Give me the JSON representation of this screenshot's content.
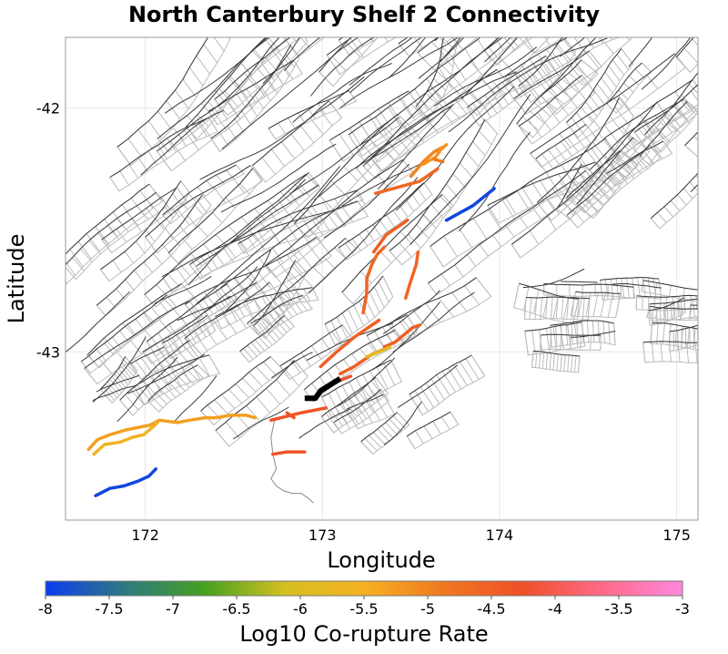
{
  "title": "North Canterbury Shelf 2 Connectivity",
  "map": {
    "xlabel": "Longitude",
    "ylabel": "Latitude",
    "xlim": [
      171.55,
      175.12
    ],
    "ylim": [
      -43.69,
      -41.71
    ],
    "x_ticks": [
      172,
      173,
      174,
      175
    ],
    "x_tick_labels": [
      "172",
      "173",
      "174",
      "175"
    ],
    "y_ticks": [
      -42,
      -43
    ],
    "y_tick_labels": [
      "-42",
      "-43"
    ],
    "grid": true
  },
  "colorbar": {
    "label": "Log10 Co-rupture Rate",
    "min": -8,
    "max": -3,
    "ticks": [
      -8,
      -7.5,
      -7,
      -6.5,
      -6,
      -5.5,
      -5,
      -4.5,
      -4,
      -3.5,
      -3
    ],
    "tick_labels": [
      "-8",
      "-7.5",
      "-7",
      "-6.5",
      "-6",
      "-5.5",
      "-5",
      "-4.5",
      "-4",
      "-3.5",
      "-3"
    ],
    "stops": [
      "#0a3cf0",
      "#2e7a80",
      "#46a020",
      "#d4c020",
      "#f5b222",
      "#f07820",
      "#ee5028",
      "#ff6a8a",
      "#ff88dd"
    ]
  },
  "colors": {
    "fault_trace": "#3a3a3a",
    "fault_patch": "#bcbcbc",
    "target_fault": "#000000",
    "frame": "#999999",
    "gridline": "#e8e8e8"
  },
  "chart_data": {
    "type": "map",
    "title": "North Canterbury Shelf 2 Connectivity",
    "xlabel": "Longitude",
    "ylabel": "Latitude",
    "target_fault": {
      "name": "North Canterbury Shelf 2",
      "trace": [
        [
          172.9,
          -43.19
        ],
        [
          172.96,
          -43.19
        ],
        [
          172.99,
          -43.16
        ],
        [
          173.1,
          -43.11
        ]
      ]
    },
    "connected_faults": [
      {
        "trace": [
          [
            173.3,
            -42.35
          ],
          [
            173.45,
            -42.32
          ],
          [
            173.55,
            -42.3
          ],
          [
            173.65,
            -42.25
          ]
        ],
        "log10_rate": -4.6
      },
      {
        "trace": [
          [
            173.5,
            -42.28
          ],
          [
            173.57,
            -42.22
          ],
          [
            173.63,
            -42.18
          ],
          [
            173.68,
            -42.16
          ]
        ],
        "log10_rate": -5.0
      },
      {
        "trace": [
          [
            173.57,
            -42.23
          ],
          [
            173.64,
            -42.2
          ],
          [
            173.67,
            -42.17
          ],
          [
            173.7,
            -42.15
          ]
        ],
        "log10_rate": -5.2
      },
      {
        "trace": [
          [
            173.68,
            -42.22
          ],
          [
            173.63,
            -42.21
          ]
        ],
        "log10_rate": -4.9
      },
      {
        "trace": [
          [
            173.7,
            -42.46
          ],
          [
            173.85,
            -42.4
          ],
          [
            173.97,
            -42.33
          ]
        ],
        "log10_rate": -7.9
      },
      {
        "trace": [
          [
            173.29,
            -42.59
          ],
          [
            173.36,
            -42.52
          ],
          [
            173.48,
            -42.46
          ]
        ],
        "log10_rate": -4.5
      },
      {
        "trace": [
          [
            173.23,
            -42.84
          ],
          [
            173.25,
            -42.76
          ],
          [
            173.25,
            -42.7
          ],
          [
            173.28,
            -42.64
          ],
          [
            173.31,
            -42.6
          ],
          [
            173.35,
            -42.57
          ]
        ],
        "log10_rate": -4.6
      },
      {
        "trace": [
          [
            173.47,
            -42.78
          ],
          [
            173.49,
            -42.73
          ],
          [
            173.53,
            -42.64
          ],
          [
            173.54,
            -42.59
          ]
        ],
        "log10_rate": -4.6
      },
      {
        "trace": [
          [
            172.99,
            -43.06
          ],
          [
            173.08,
            -43.0
          ],
          [
            173.18,
            -42.94
          ],
          [
            173.26,
            -42.9
          ],
          [
            173.32,
            -42.87
          ]
        ],
        "log10_rate": -4.5
      },
      {
        "trace": [
          [
            173.1,
            -43.09
          ],
          [
            173.18,
            -43.06
          ],
          [
            173.28,
            -43.01
          ],
          [
            173.38,
            -42.98
          ]
        ],
        "log10_rate": -4.5
      },
      {
        "trace": [
          [
            173.35,
            -42.98
          ],
          [
            173.41,
            -42.96
          ],
          [
            173.46,
            -42.93
          ],
          [
            173.51,
            -42.9
          ],
          [
            173.55,
            -42.89
          ]
        ],
        "log10_rate": -4.5
      },
      {
        "trace": [
          [
            173.25,
            -43.02
          ],
          [
            173.32,
            -43.0
          ],
          [
            173.38,
            -42.98
          ]
        ],
        "log10_rate": -5.9
      },
      {
        "trace": [
          [
            173.05,
            -43.13
          ],
          [
            173.16,
            -43.1
          ]
        ],
        "log10_rate": -4.2
      },
      {
        "trace": [
          [
            172.71,
            -43.28
          ],
          [
            172.88,
            -43.25
          ],
          [
            173.02,
            -43.23
          ]
        ],
        "log10_rate": -4.3
      },
      {
        "trace": [
          [
            172.72,
            -43.42
          ],
          [
            172.8,
            -43.41
          ],
          [
            172.9,
            -43.41
          ]
        ],
        "log10_rate": -4.3
      },
      {
        "trace": [
          [
            172.8,
            -43.25
          ],
          [
            172.84,
            -43.27
          ]
        ],
        "log10_rate": -4.3
      },
      {
        "trace": [
          [
            171.68,
            -43.4
          ],
          [
            171.73,
            -43.36
          ],
          [
            171.8,
            -43.34
          ],
          [
            171.89,
            -43.32
          ],
          [
            171.96,
            -43.31
          ],
          [
            172.03,
            -43.3
          ],
          [
            172.08,
            -43.28
          ],
          [
            172.18,
            -43.29
          ],
          [
            172.25,
            -43.28
          ],
          [
            172.34,
            -43.27
          ],
          [
            172.4,
            -43.27
          ],
          [
            172.48,
            -43.26
          ],
          [
            172.57,
            -43.26
          ],
          [
            172.62,
            -43.27
          ]
        ],
        "log10_rate": -5.3
      },
      {
        "trace": [
          [
            171.71,
            -43.42
          ],
          [
            171.77,
            -43.38
          ],
          [
            171.86,
            -43.37
          ],
          [
            171.93,
            -43.35
          ],
          [
            171.99,
            -43.34
          ],
          [
            172.04,
            -43.31
          ],
          [
            172.07,
            -43.29
          ]
        ],
        "log10_rate": -5.6
      },
      {
        "trace": [
          [
            171.72,
            -43.59
          ],
          [
            171.8,
            -43.56
          ],
          [
            171.88,
            -43.55
          ],
          [
            171.96,
            -43.53
          ],
          [
            172.02,
            -43.51
          ],
          [
            172.06,
            -43.48
          ]
        ],
        "log10_rate": -7.9
      }
    ]
  }
}
